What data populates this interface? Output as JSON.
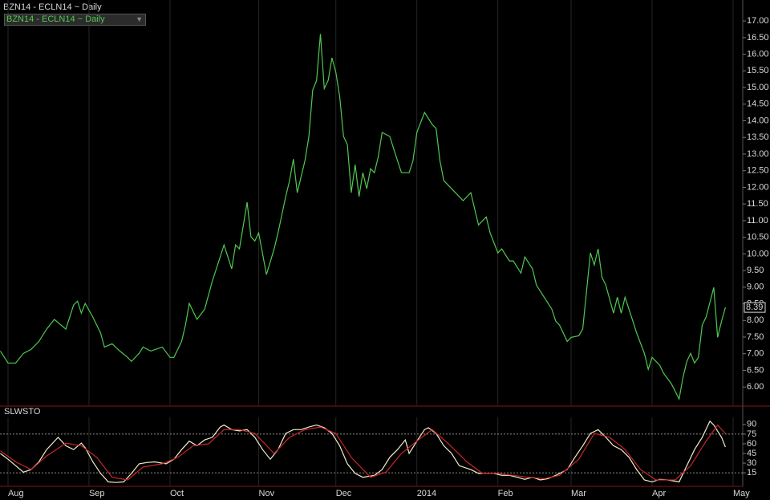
{
  "chart_data": [
    {
      "type": "line",
      "title": "BZN14 - ECLN14 ~ Daily",
      "grid": true,
      "xlim": [
        -2.08,
        190.5
      ],
      "ylim": [
        5.45,
        17.63
      ],
      "yticks": [
        {
          "value": 6,
          "label": "6.00"
        },
        {
          "value": 6.5,
          "label": "6.50"
        },
        {
          "value": 7,
          "label": "7.00"
        },
        {
          "value": 7.5,
          "label": "7.50"
        },
        {
          "value": 8,
          "label": "8.00"
        },
        {
          "value": 8.5,
          "label": "8.50"
        },
        {
          "value": 9,
          "label": "9.00"
        },
        {
          "value": 9.5,
          "label": "9.50"
        },
        {
          "value": 10,
          "label": "10.00"
        },
        {
          "value": 10.5,
          "label": "10.50"
        },
        {
          "value": 11,
          "label": "11.00"
        },
        {
          "value": 11.5,
          "label": "11.50"
        },
        {
          "value": 12,
          "label": "12.00"
        },
        {
          "value": 12.5,
          "label": "12.50"
        },
        {
          "value": 13,
          "label": "13.00"
        },
        {
          "value": 13.5,
          "label": "13.50"
        },
        {
          "value": 14,
          "label": "14.00"
        },
        {
          "value": 14.5,
          "label": "14.50"
        },
        {
          "value": 15,
          "label": "15.00"
        },
        {
          "value": 15.5,
          "label": "15.50"
        },
        {
          "value": 16,
          "label": "16.00"
        },
        {
          "value": 16.5,
          "label": "16.50"
        },
        {
          "value": 17,
          "label": "17.00"
        }
      ],
      "series": [
        {
          "name": "BZN14 - ECLN14 ~ Daily",
          "color": "#4fc94f",
          "x": [
            -2,
            0,
            2,
            4,
            6,
            8,
            10,
            12,
            15,
            17,
            18,
            19,
            20,
            22,
            24,
            25,
            27,
            29,
            31,
            32,
            34,
            35,
            37,
            40,
            42,
            43,
            45,
            46,
            47,
            49,
            51,
            53,
            54,
            56,
            57,
            58,
            59,
            60,
            62,
            63,
            64,
            65,
            67,
            69,
            70,
            72,
            73,
            74,
            75,
            77,
            78,
            79,
            80,
            81,
            82,
            83,
            84,
            85,
            86,
            87,
            88,
            89,
            90,
            91,
            92,
            93,
            94,
            95,
            96,
            97,
            99,
            100,
            101,
            102,
            104,
            105,
            106,
            108,
            110,
            111,
            112,
            113,
            115,
            116,
            118,
            120,
            121,
            122,
            124,
            125,
            127,
            128,
            130,
            131,
            133,
            134,
            136,
            137,
            139,
            141,
            142,
            143,
            145,
            146,
            148,
            149,
            151,
            152,
            153,
            154,
            155,
            157,
            158,
            159,
            160,
            162,
            163,
            165,
            166,
            167,
            169,
            170,
            172,
            174,
            175,
            176,
            177,
            178,
            179,
            180,
            181,
            183,
            184,
            185,
            186
          ],
          "values": [
            7.08,
            6.72,
            6.72,
            7.01,
            7.13,
            7.37,
            7.74,
            8.03,
            7.74,
            8.46,
            8.58,
            8.22,
            8.51,
            8.1,
            7.62,
            7.2,
            7.3,
            7.08,
            6.89,
            6.77,
            7.01,
            7.2,
            7.08,
            7.2,
            6.89,
            6.89,
            7.37,
            7.86,
            8.51,
            8.03,
            8.34,
            9.19,
            9.55,
            10.27,
            9.91,
            9.55,
            10.27,
            10.15,
            11.55,
            10.51,
            10.39,
            10.63,
            9.38,
            10.15,
            10.63,
            11.72,
            12.2,
            12.85,
            11.84,
            12.8,
            13.53,
            14.93,
            15.21,
            16.61,
            14.97,
            15.21,
            15.89,
            15.46,
            14.73,
            13.53,
            13.28,
            11.84,
            12.68,
            11.72,
            12.44,
            11.96,
            12.56,
            12.44,
            12.92,
            13.65,
            13.53,
            13.16,
            12.8,
            12.44,
            12.44,
            12.8,
            13.65,
            14.25,
            13.89,
            13.77,
            12.8,
            12.2,
            11.96,
            11.84,
            11.6,
            11.84,
            11.35,
            10.87,
            11.11,
            10.63,
            10.03,
            10.15,
            9.79,
            9.79,
            9.42,
            9.91,
            9.55,
            9.06,
            8.7,
            8.34,
            7.98,
            7.86,
            7.37,
            7.49,
            7.54,
            7.74,
            10.03,
            9.67,
            10.15,
            9.3,
            9.06,
            8.22,
            8.7,
            8.22,
            8.7,
            7.98,
            7.62,
            7.01,
            6.53,
            6.89,
            6.65,
            6.41,
            6.1,
            5.64,
            6.29,
            6.77,
            7.01,
            6.72,
            6.89,
            7.86,
            8.1,
            8.99,
            7.49,
            7.98,
            8.39
          ]
        }
      ]
    },
    {
      "type": "line",
      "title": "SLWSTO",
      "grid": true,
      "xlim": [
        -2.08,
        190.5
      ],
      "ylim": [
        -6,
        101
      ],
      "yticks": [
        15,
        30,
        45,
        60,
        75,
        90
      ],
      "levels": [
        75,
        15
      ],
      "xticks": [
        {
          "value": 0,
          "label": "Aug"
        },
        {
          "value": 21,
          "label": "Sep"
        },
        {
          "value": 42,
          "label": "Oct"
        },
        {
          "value": 65,
          "label": "Nov"
        },
        {
          "value": 85,
          "label": "Dec"
        },
        {
          "value": 106,
          "label": "2014"
        },
        {
          "value": 127,
          "label": "Feb"
        },
        {
          "value": 146,
          "label": "Mar"
        },
        {
          "value": 167,
          "label": "Apr"
        },
        {
          "value": 188,
          "label": "May"
        }
      ],
      "series": [
        {
          "color": "#f2eccb",
          "x": [
            -2,
            0,
            2,
            4,
            6,
            8,
            10,
            13,
            15,
            17,
            19,
            20,
            22,
            24,
            26,
            28,
            30,
            32,
            34,
            36,
            38,
            41,
            43,
            45,
            47,
            49,
            51,
            53,
            55,
            56,
            58,
            60,
            62,
            64,
            66,
            68,
            70,
            72,
            74,
            76,
            78,
            80,
            82,
            84,
            86,
            88,
            90,
            92,
            95,
            97,
            99,
            101,
            103,
            104,
            106,
            108,
            109,
            111,
            113,
            115,
            117,
            120,
            122,
            124,
            126,
            128,
            130,
            132,
            134,
            136,
            138,
            140,
            142,
            145,
            147,
            149,
            151,
            153,
            155,
            157,
            159,
            161,
            163,
            165,
            167,
            169,
            171,
            174,
            176,
            178,
            180,
            182,
            183,
            185,
            186
          ],
          "values": [
            45,
            36,
            26,
            16,
            20,
            32,
            51,
            70,
            57,
            51,
            61,
            54,
            32,
            14,
            1,
            0,
            1,
            14,
            29,
            31,
            32,
            29,
            36,
            51,
            64,
            57,
            66,
            70,
            86,
            89,
            82,
            80,
            82,
            70,
            51,
            36,
            51,
            76,
            82,
            82,
            86,
            89,
            85,
            76,
            57,
            29,
            14,
            8,
            11,
            20,
            39,
            51,
            66,
            45,
            64,
            82,
            85,
            76,
            57,
            45,
            26,
            20,
            14,
            14,
            14,
            11,
            11,
            8,
            5,
            8,
            4,
            6,
            11,
            20,
            39,
            57,
            76,
            82,
            70,
            57,
            51,
            39,
            20,
            4,
            1,
            5,
            4,
            1,
            26,
            51,
            70,
            95,
            89,
            70,
            55
          ]
        },
        {
          "color": "#c8262a",
          "x": [
            -2,
            2,
            6,
            10,
            15,
            19,
            23,
            27,
            31,
            35,
            40,
            44,
            48,
            52,
            56,
            60,
            64,
            69,
            73,
            77,
            81,
            85,
            89,
            94,
            98,
            102,
            106,
            110,
            114,
            119,
            123,
            127,
            131,
            135,
            139,
            143,
            148,
            152,
            156,
            160,
            164,
            168,
            173,
            177,
            181,
            184,
            186
          ],
          "values": [
            49,
            32,
            20,
            41,
            61,
            57,
            39,
            8,
            4,
            24,
            29,
            39,
            57,
            60,
            82,
            82,
            76,
            45,
            70,
            82,
            86,
            76,
            39,
            8,
            16,
            45,
            64,
            82,
            61,
            32,
            14,
            14,
            11,
            8,
            6,
            11,
            36,
            76,
            70,
            51,
            20,
            4,
            4,
            26,
            64,
            89,
            76
          ]
        }
      ]
    }
  ]
}
